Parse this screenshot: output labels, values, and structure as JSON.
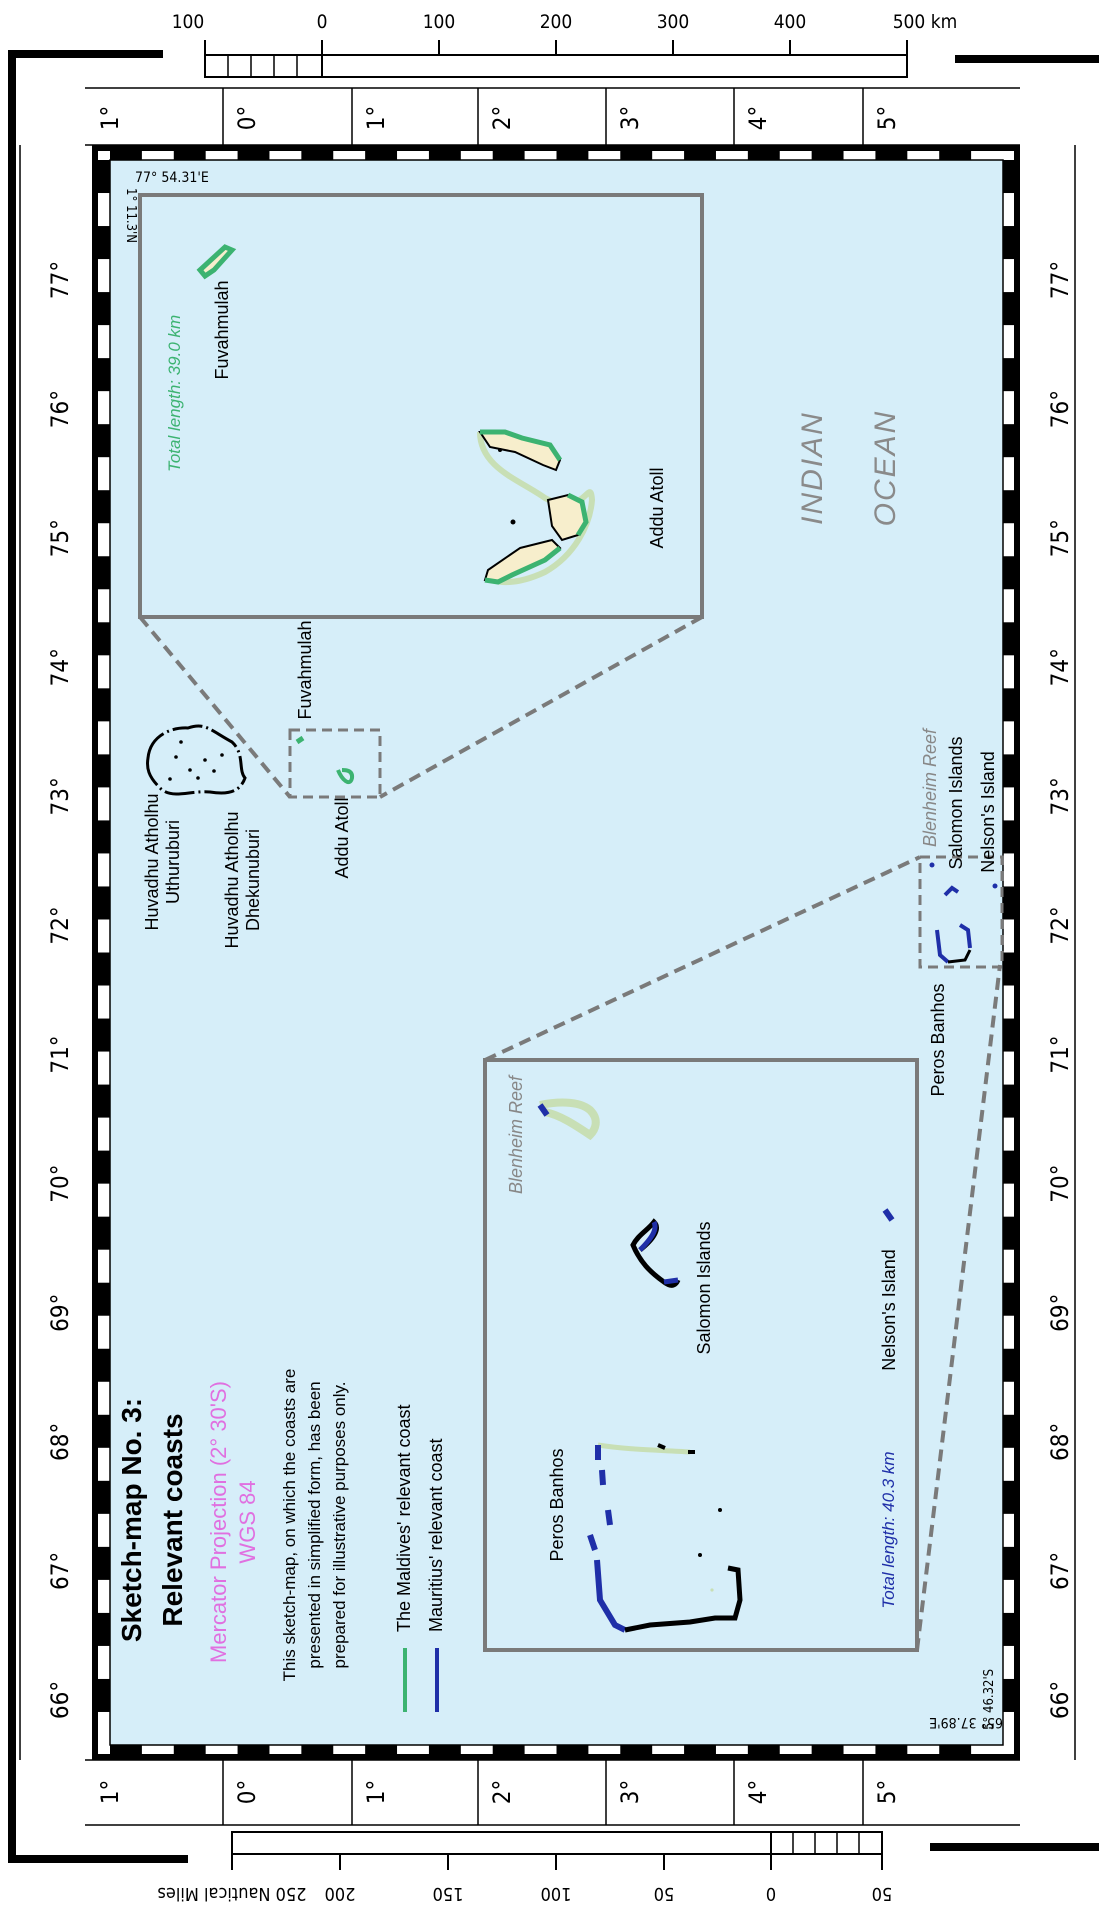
{
  "scale_km": {
    "ticks": [
      "100",
      "0",
      "100",
      "200",
      "300",
      "400",
      "500 km"
    ],
    "unit_left": "km"
  },
  "scale_nm": {
    "ticks": [
      "250 Nautical Miles",
      "200",
      "150",
      "100",
      "50",
      "0",
      "50"
    ],
    "unit_right": "Nautical Miles"
  },
  "lat_labels": [
    "1°",
    "0°",
    "1°",
    "2°",
    "3°",
    "4°",
    "5°"
  ],
  "lon_labels": [
    "66°",
    "67°",
    "68°",
    "69°",
    "70°",
    "71°",
    "72°",
    "73°",
    "74°",
    "75°",
    "76°",
    "77°"
  ],
  "corner_labels": {
    "tl_lon": "77° 54.31'E",
    "tl_lat": "1° 11.3'N",
    "br_lon": "65° 37.89'E",
    "br_lat": "5° 46.32'S"
  },
  "ocean_label": [
    "INDIAN",
    "OCEAN"
  ],
  "places": {
    "fuvahmulah": "Fuvahmulah",
    "addu": "Addu Atoll",
    "huvadhu_u_1": "Huvadhu Atholhu",
    "huvadhu_u_2": "Uthuruburi",
    "huvadhu_d_1": "Huvadhu Atholhu",
    "huvadhu_d_2": "Dhekunuburi",
    "blenheim": "Blenheim Reef",
    "salomon": "Salomon Islands",
    "nelson": "Nelson's Island",
    "peros": "Peros Banhos"
  },
  "inset_maldives_total": "Total length: 39.0 km",
  "inset_chagos_total": "Total length: 40.3 km",
  "title_block": {
    "title_1": "Sketch-map No. 3:",
    "title_2": "Relevant coasts",
    "projection": "Mercator Projection (2° 30'S)",
    "datum": "WGS 84",
    "note_1": "This sketch-map, on which the coasts are",
    "note_2": "presented in simplified form, has been",
    "note_3": "prepared for illustrative purposes only."
  },
  "legend": [
    {
      "label": "The Maldives' relevant coast",
      "color": "#3cb371"
    },
    {
      "label": "Mauritius' relevant coast",
      "color": "#1f2fa8"
    }
  ],
  "colors": {
    "sea": "#d6eef9",
    "maldives": "#3cb371",
    "mauritius": "#1f2fa8",
    "inset_frame": "#7a7a7a",
    "magenta": "#e070e0"
  }
}
